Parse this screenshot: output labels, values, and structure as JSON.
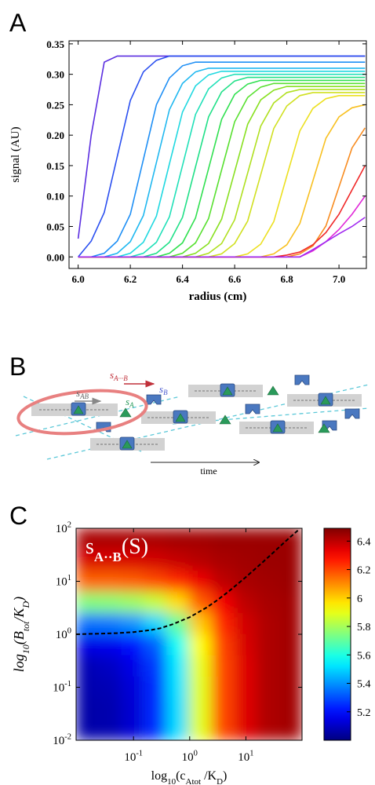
{
  "chart_data": [
    {
      "type": "line",
      "panel_label": "A",
      "xlabel": "radius (cm)",
      "ylabel": "signal (AU)",
      "xlim": [
        5.965,
        7.105
      ],
      "ylim": [
        -0.019,
        0.355
      ],
      "xticks": [
        {
          "value": 6,
          "label": "6.0"
        },
        6.2,
        6.4,
        6.6,
        6.8,
        {
          "value": 7,
          "label": "7.0"
        }
      ],
      "yticks": [
        {
          "value": 0,
          "label": "0.00"
        },
        {
          "value": 0.05,
          "label": "0.05"
        },
        {
          "value": 0.1,
          "label": "0.10"
        },
        {
          "value": 0.15,
          "label": "0.15"
        },
        {
          "value": 0.2,
          "label": "0.20"
        },
        {
          "value": 0.25,
          "label": "0.25"
        },
        {
          "value": 0.3,
          "label": "0.30"
        },
        {
          "value": 0.35,
          "label": "0.35"
        }
      ],
      "x": [
        6,
        6.05,
        6.1,
        6.15,
        6.2,
        6.25,
        6.3,
        6.35,
        6.4,
        6.45,
        6.5,
        6.55,
        6.6,
        6.65,
        6.7,
        6.75,
        6.8,
        6.85,
        6.9,
        6.95,
        7,
        7.05,
        7.1
      ],
      "series": [
        {
          "color": "#5a2de0",
          "values": [
            0.03,
            0.2,
            0.32,
            0.33,
            0.33,
            0.33,
            0.33,
            0.33,
            0.33,
            0.33,
            0.33,
            0.33,
            0.33,
            0.33,
            0.33,
            0.33,
            0.33,
            0.33,
            0.33,
            0.33,
            0.33,
            0.33,
            0.33
          ]
        },
        {
          "color": "#2a4ff0",
          "values": [
            0,
            0.026,
            0.073,
            0.165,
            0.257,
            0.304,
            0.323,
            0.33,
            0.33,
            0.33,
            0.33,
            0.33,
            0.33,
            0.33,
            0.33,
            0.33,
            0.33,
            0.33,
            0.33,
            0.33,
            0.33,
            0.33,
            0.33
          ]
        },
        {
          "color": "#1e8ff5",
          "values": [
            0,
            0,
            0.006,
            0.026,
            0.07,
            0.16,
            0.25,
            0.294,
            0.314,
            0.32,
            0.32,
            0.32,
            0.32,
            0.32,
            0.32,
            0.32,
            0.32,
            0.32,
            0.32,
            0.32,
            0.32,
            0.32,
            0.32
          ]
        },
        {
          "color": "#20b8f0",
          "values": [
            0,
            0,
            0,
            0.006,
            0.025,
            0.068,
            0.155,
            0.242,
            0.285,
            0.304,
            0.31,
            0.31,
            0.31,
            0.31,
            0.31,
            0.31,
            0.31,
            0.31,
            0.31,
            0.31,
            0.31,
            0.31,
            0.31
          ]
        },
        {
          "color": "#20d8e0",
          "values": [
            0,
            0,
            0,
            0,
            0.006,
            0.024,
            0.067,
            0.153,
            0.238,
            0.281,
            0.299,
            0.305,
            0.305,
            0.305,
            0.305,
            0.305,
            0.305,
            0.305,
            0.305,
            0.305,
            0.305,
            0.305,
            0.305
          ]
        },
        {
          "color": "#20e0b8",
          "values": [
            0,
            0,
            0,
            0,
            0,
            0.006,
            0.024,
            0.066,
            0.15,
            0.234,
            0.276,
            0.294,
            0.3,
            0.3,
            0.3,
            0.3,
            0.3,
            0.3,
            0.3,
            0.3,
            0.3,
            0.3,
            0.3
          ]
        },
        {
          "color": "#20e088",
          "values": [
            0,
            0,
            0,
            0,
            0,
            0,
            0.006,
            0.024,
            0.065,
            0.148,
            0.23,
            0.271,
            0.289,
            0.295,
            0.295,
            0.295,
            0.295,
            0.295,
            0.295,
            0.295,
            0.295,
            0.295,
            0.295
          ]
        },
        {
          "color": "#30e050",
          "values": [
            0,
            0,
            0,
            0,
            0,
            0,
            0,
            0.006,
            0.023,
            0.064,
            0.145,
            0.226,
            0.267,
            0.284,
            0.29,
            0.29,
            0.29,
            0.29,
            0.29,
            0.29,
            0.29,
            0.29,
            0.29
          ]
        },
        {
          "color": "#58e030",
          "values": [
            0,
            0,
            0,
            0,
            0,
            0,
            0,
            0,
            0.006,
            0.023,
            0.063,
            0.143,
            0.222,
            0.262,
            0.279,
            0.285,
            0.285,
            0.285,
            0.285,
            0.285,
            0.285,
            0.285,
            0.285
          ]
        },
        {
          "color": "#88e020",
          "values": [
            0,
            0,
            0,
            0,
            0,
            0,
            0,
            0,
            0,
            0.006,
            0.022,
            0.062,
            0.14,
            0.218,
            0.258,
            0.274,
            0.28,
            0.28,
            0.28,
            0.28,
            0.28,
            0.28,
            0.28
          ]
        },
        {
          "color": "#b0e020",
          "values": [
            0,
            0,
            0,
            0,
            0,
            0,
            0,
            0,
            0,
            0,
            0.006,
            0.022,
            0.061,
            0.138,
            0.215,
            0.253,
            0.27,
            0.275,
            0.275,
            0.275,
            0.275,
            0.275,
            0.275
          ]
        },
        {
          "color": "#d0e020",
          "values": [
            0,
            0,
            0,
            0,
            0,
            0,
            0,
            0,
            0,
            0,
            0,
            0.005,
            0.022,
            0.059,
            0.135,
            0.211,
            0.248,
            0.265,
            0.27,
            0.27,
            0.27,
            0.27,
            0.27
          ]
        },
        {
          "color": "#ece020",
          "values": [
            0,
            0,
            0,
            0,
            0,
            0,
            0,
            0,
            0,
            0,
            0,
            0,
            0,
            0.005,
            0.021,
            0.058,
            0.133,
            0.207,
            0.244,
            0.26,
            0.265,
            0.265,
            0.265
          ]
        },
        {
          "color": "#f8c020",
          "values": [
            0,
            0,
            0,
            0,
            0,
            0,
            0,
            0,
            0,
            0,
            0,
            0,
            0,
            0,
            0,
            0.005,
            0.02,
            0.055,
            0.125,
            0.195,
            0.23,
            0.245,
            0.25
          ]
        },
        {
          "color": "#f88c20",
          "values": [
            0,
            0,
            0,
            0,
            0,
            0,
            0,
            0,
            0,
            0,
            0,
            0,
            0,
            0,
            0,
            0,
            0,
            0.005,
            0.018,
            0.051,
            0.115,
            0.179,
            0.212
          ]
        },
        {
          "color": "#f02828",
          "values": [
            0,
            0,
            0,
            0,
            0,
            0,
            0,
            0,
            0,
            0,
            0,
            0,
            0,
            0,
            0,
            0,
            0.003,
            0.008,
            0.02,
            0.04,
            0.07,
            0.11,
            0.15
          ]
        },
        {
          "color": "#e028d8",
          "values": [
            0,
            0,
            0,
            0,
            0,
            0,
            0,
            0,
            0,
            0,
            0,
            0,
            0,
            0,
            0,
            0,
            0,
            0,
            0.01,
            0.025,
            0.045,
            0.07,
            0.1
          ]
        },
        {
          "color": "#a028f0",
          "values": [
            0,
            0,
            0,
            0,
            0,
            0,
            0,
            0,
            0,
            0,
            0,
            0,
            0,
            0,
            0,
            0,
            0,
            0,
            0.012,
            0.025,
            0.038,
            0.05,
            0.065
          ]
        }
      ]
    },
    {
      "type": "heatmap",
      "panel_label": "C",
      "xscale": "log",
      "yscale": "log",
      "xlabel": [
        "log",
        "10",
        "(c",
        "Atot",
        " /K",
        "D",
        ")"
      ],
      "ylabel": [
        "log",
        "10",
        "(B",
        "tot",
        "/K",
        "D",
        ")"
      ],
      "annotation": [
        "s",
        "A··B",
        "(S)"
      ],
      "xlim": [
        0.0095,
        100
      ],
      "ylim": [
        0.01,
        100
      ],
      "xticks": [
        {
          "value": 0.1,
          "label": "10",
          "exponent": "-1"
        },
        {
          "value": 1,
          "label": "10",
          "exponent": "0"
        },
        {
          "value": 10,
          "label": "10",
          "exponent": "1"
        }
      ],
      "yticks": [
        {
          "value": 0.01,
          "label": "10",
          "exponent": "-2"
        },
        {
          "value": 0.1,
          "label": "10",
          "exponent": "-1"
        },
        {
          "value": 1,
          "label": "10",
          "exponent": "0"
        },
        {
          "value": 10,
          "label": "10",
          "exponent": "1"
        },
        {
          "value": 100,
          "label": "10",
          "exponent": "2"
        }
      ],
      "z": [
        [
          6.43,
          6.43,
          6.43,
          6.43,
          6.44,
          6.44,
          6.45,
          6.45,
          6.45,
          6.45
        ],
        [
          6.36,
          6.36,
          6.36,
          6.37,
          6.39,
          6.41,
          6.43,
          6.44,
          6.45,
          6.45
        ],
        [
          6.16,
          6.16,
          6.17,
          6.2,
          6.25,
          6.33,
          6.4,
          6.43,
          6.44,
          6.45
        ],
        [
          5.75,
          5.76,
          5.79,
          5.85,
          5.98,
          6.17,
          6.32,
          6.4,
          6.43,
          6.44
        ],
        [
          5.35,
          5.36,
          5.4,
          5.5,
          5.71,
          6.01,
          6.25,
          6.37,
          6.42,
          6.44
        ],
        [
          5.15,
          5.16,
          5.21,
          5.32,
          5.57,
          5.93,
          6.21,
          6.36,
          6.42,
          6.44
        ],
        [
          5.08,
          5.1,
          5.15,
          5.27,
          5.53,
          5.9,
          6.2,
          6.35,
          6.42,
          6.44
        ],
        [
          5.07,
          5.08,
          5.13,
          5.25,
          5.52,
          5.89,
          6.2,
          6.35,
          6.42,
          6.44
        ],
        [
          5.06,
          5.07,
          5.12,
          5.25,
          5.51,
          5.89,
          6.2,
          6.35,
          6.42,
          6.44
        ],
        [
          5.06,
          5.07,
          5.12,
          5.25,
          5.51,
          5.89,
          6.2,
          6.35,
          6.42,
          6.44
        ]
      ],
      "colorbar": {
        "colormap": "jet",
        "clim": [
          5.0,
          6.49
        ],
        "ticks": [
          5.2,
          5.4,
          5.6,
          5.8,
          6,
          6.2,
          6.4
        ]
      },
      "curve": {
        "color": "#000000",
        "x": [
          0.0095,
          0.05,
          0.1,
          0.2,
          0.3,
          0.5,
          1,
          2,
          3,
          5,
          10,
          20,
          30,
          50,
          90
        ],
        "values": [
          1.0,
          1.05,
          1.1,
          1.2,
          1.3,
          1.55,
          2.1,
          3.2,
          4.3,
          6.5,
          12,
          23,
          34,
          56,
          97
        ]
      }
    }
  ],
  "diagram": {
    "panel_label": "B",
    "labels": [
      {
        "main": "s",
        "sub": "A···B"
      },
      {
        "main": "s",
        "sub": "AB"
      },
      {
        "main": "s",
        "sub": "A"
      },
      {
        "main": "s",
        "sub": "B"
      }
    ],
    "axis_label": "time"
  }
}
